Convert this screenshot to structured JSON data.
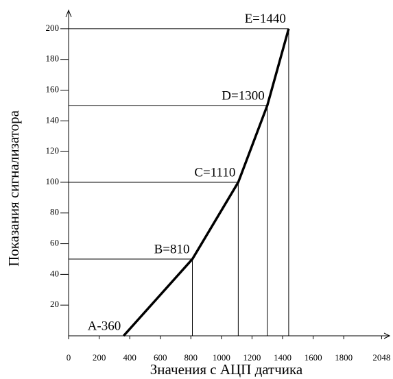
{
  "chart_data": {
    "type": "line",
    "x_label": "Значения с АЦП датчика",
    "y_label": "Показания сигнализатора",
    "x": [
      360,
      810,
      1110,
      1300,
      1440
    ],
    "series": [
      {
        "color": "#000000",
        "values": [
          0,
          50,
          100,
          150,
          200
        ]
      }
    ],
    "annotations": [
      "A-360",
      "B=810",
      "C=1110",
      "D=1300",
      "E=1440"
    ],
    "xlim": [
      0,
      2100
    ],
    "xticks": [
      0,
      200,
      400,
      600,
      800,
      1000,
      1200,
      1400,
      1600,
      1800,
      2048
    ],
    "ylim": [
      0,
      212
    ],
    "yticks": [
      20,
      40,
      60,
      80,
      100,
      120,
      140,
      160,
      180,
      200
    ],
    "guides": true
  }
}
